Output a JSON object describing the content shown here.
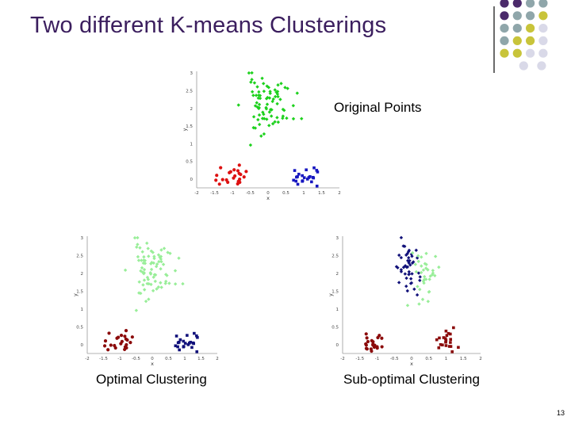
{
  "slide": {
    "title": "Two different K-means Clusterings",
    "page_number": "13",
    "colors": {
      "title": "#3b1e5e",
      "dot_purple": "#4b2a6b",
      "dot_teal": "#8fa6aa",
      "dot_olive": "#c8c43a",
      "dot_lavender": "#d9d9e8"
    }
  },
  "plots": [
    {
      "id": "original",
      "label": "Original Points",
      "xlabel": "x",
      "ylabel": "y",
      "xlim": [
        -2,
        2
      ],
      "ylim": [
        -0.25,
        3.05
      ],
      "xticks": [
        -2,
        -1.5,
        -1,
        -0.5,
        0,
        0.5,
        1,
        1.5,
        2
      ],
      "xtick_labels": [
        "-2",
        "-1.5",
        "-1",
        "-0.5",
        "0",
        "0.5",
        "1",
        "1.5",
        "2"
      ],
      "yticks": [
        0,
        0.5,
        1,
        1.5,
        2,
        2.5,
        3
      ],
      "ytick_labels": [
        "0",
        "0.5",
        "1",
        "1.5",
        "2",
        "2.5",
        "3"
      ],
      "clusters": [
        {
          "color": "#1ed11e",
          "marker": "diamond",
          "cx": 0.0,
          "cy": 2.1,
          "sx": 0.35,
          "sy": 0.4,
          "n": 80
        },
        {
          "color": "#dd1111",
          "marker": "circle",
          "cx": -1.05,
          "cy": 0.05,
          "sx": 0.2,
          "sy": 0.14,
          "n": 22
        },
        {
          "color": "#1616c0",
          "marker": "square",
          "cx": 1.0,
          "cy": 0.05,
          "sx": 0.17,
          "sy": 0.13,
          "n": 22
        }
      ]
    },
    {
      "id": "optimal",
      "label": "Optimal Clustering",
      "xlabel": "x",
      "ylabel": "y",
      "xlim": [
        -2,
        2
      ],
      "ylim": [
        -0.25,
        3.05
      ],
      "xticks": [
        -2,
        -1.5,
        -1,
        -0.5,
        0,
        0.5,
        1,
        1.5,
        2
      ],
      "xtick_labels": [
        "-2",
        "-1.5",
        "-1",
        "-0.5",
        "0",
        "0.5",
        "1",
        "1.5",
        "2"
      ],
      "yticks": [
        0,
        0.5,
        1,
        1.5,
        2,
        2.5,
        3
      ],
      "ytick_labels": [
        "0",
        "0.5",
        "1",
        "1.5",
        "2",
        "2.5",
        "3"
      ],
      "clusters": [
        {
          "color": "#99ee99",
          "marker": "diamond",
          "cx": 0.0,
          "cy": 2.1,
          "sx": 0.35,
          "sy": 0.4,
          "n": 80
        },
        {
          "color": "#8b0a0a",
          "marker": "circle",
          "cx": -1.05,
          "cy": 0.05,
          "sx": 0.2,
          "sy": 0.14,
          "n": 22
        },
        {
          "color": "#10107a",
          "marker": "square",
          "cx": 1.0,
          "cy": 0.05,
          "sx": 0.17,
          "sy": 0.13,
          "n": 22
        }
      ]
    },
    {
      "id": "suboptimal",
      "label": "Sub-optimal Clustering",
      "xlabel": "x",
      "ylabel": "y",
      "xlim": [
        -2,
        2
      ],
      "ylim": [
        -0.25,
        3.05
      ],
      "xticks": [
        -2,
        -1.5,
        -1,
        -0.5,
        0,
        0.5,
        1,
        1.5,
        2
      ],
      "xtick_labels": [
        "-2",
        "-1.5",
        "-1",
        "-0.5",
        "0",
        "0.5",
        "1",
        "1.5",
        "2"
      ],
      "yticks": [
        0,
        0.5,
        1,
        1.5,
        2,
        2.5,
        3
      ],
      "ytick_labels": [
        "0",
        "0.5",
        "1",
        "1.5",
        "2",
        "2.5",
        "3"
      ],
      "clusters": [
        {
          "color": "#12127a",
          "marker": "diamond",
          "cx": -0.15,
          "cy": 2.15,
          "sx": 0.18,
          "sy": 0.42,
          "n": 45
        },
        {
          "color": "#99ee99",
          "marker": "diamond",
          "cx": 0.4,
          "cy": 2.0,
          "sx": 0.2,
          "sy": 0.4,
          "n": 35
        },
        {
          "color": "#8b0a0a",
          "marker": "circle",
          "cx": -1.05,
          "cy": 0.05,
          "sx": 0.2,
          "sy": 0.14,
          "n": 22
        },
        {
          "color": "#8b0a0a",
          "marker": "square",
          "cx": 1.0,
          "cy": 0.05,
          "sx": 0.17,
          "sy": 0.13,
          "n": 22
        }
      ]
    }
  ]
}
